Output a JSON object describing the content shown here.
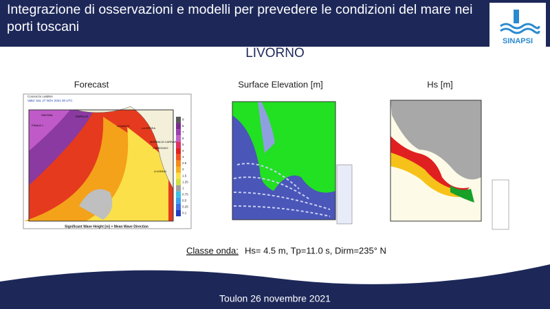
{
  "header": {
    "title": "Integrazione di osservazioni e modelli per prevedere le condizioni del mare nei porti toscani",
    "logo_text": "SINAPSI"
  },
  "location": "LIVORNO",
  "panels": [
    {
      "title": "Forecast",
      "info": "Consorzio LaMMA",
      "valid": "Valid: Sat, 27 NOV 2021   00 UTC",
      "caption": "Significant Wave Height [m] + Mean Wave Direction",
      "places": [
        "SAVONA",
        "FINALE L.",
        "RAPALLO",
        "LEVANTO",
        "LA SPEZIA",
        "MARINA DI CARRARA",
        "VIAREGGIO",
        "LIVORNO"
      ],
      "legend": [
        "9",
        "8",
        "7",
        "6",
        "5",
        "4",
        "3",
        "2.5",
        "2",
        "1.5",
        "1.25",
        "1",
        "0.75",
        "0.5",
        "0.25",
        "0.1"
      ]
    },
    {
      "title": "Surface Elevation [m]"
    },
    {
      "title": "Hs [m]"
    }
  ],
  "wave_class": {
    "label": "Classe onda:",
    "text": "Hs= 4.5 m, Tp=11.0 s, Dirm=235° N"
  },
  "footer": "Toulon 26 novembre 2021"
}
